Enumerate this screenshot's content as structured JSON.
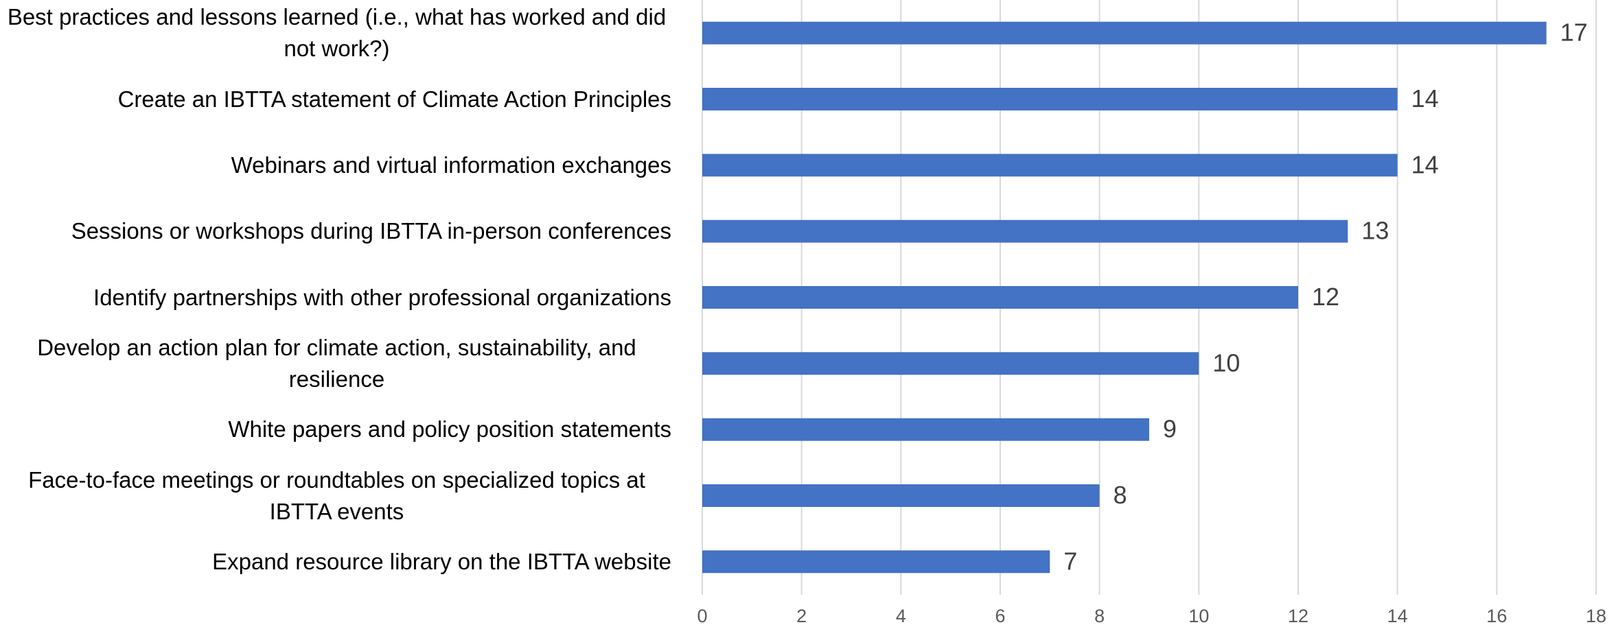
{
  "chart_data": {
    "type": "bar",
    "orientation": "horizontal",
    "categories": [
      "Best practices and lessons learned (i.e., what has worked and did not work?)",
      "Create an IBTTA statement of Climate Action Principles",
      "Webinars and virtual information exchanges",
      "Sessions or workshops during IBTTA in-person conferences",
      "Identify partnerships with other professional organizations",
      "Develop an action plan for climate action, sustainability, and resilience",
      "White papers and policy position statements",
      "Face-to-face meetings or roundtables on specialized topics at IBTTA events",
      "Expand resource library on the IBTTA website"
    ],
    "values": [
      17,
      14,
      14,
      13,
      12,
      10,
      9,
      8,
      7
    ],
    "color": "#4472c4",
    "xlim": [
      0,
      18
    ],
    "xticks": [
      0,
      2,
      4,
      6,
      8,
      10,
      12,
      14,
      16,
      18
    ],
    "grid": true
  }
}
